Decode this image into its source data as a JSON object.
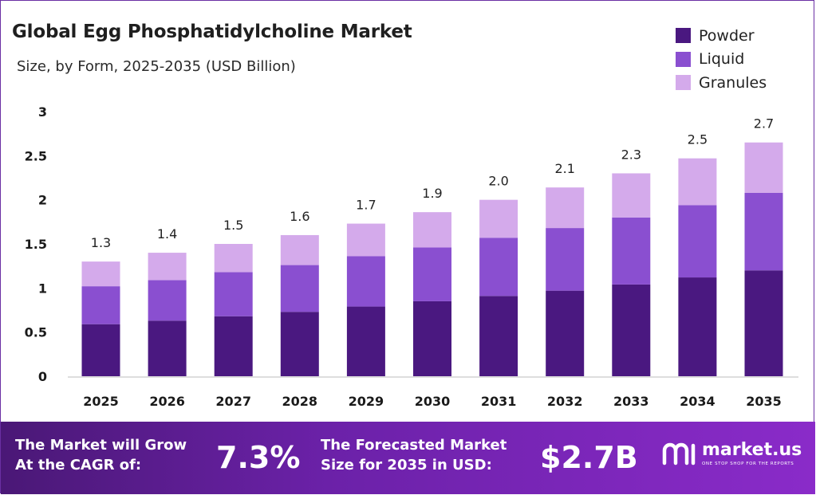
{
  "header": {
    "title": "Global Egg Phosphatidylcholine Market",
    "subtitle": "Size, by Form, 2025-2035 (USD Billion)"
  },
  "chart_data": {
    "type": "bar",
    "stacked": true,
    "categories": [
      "2025",
      "2026",
      "2027",
      "2028",
      "2029",
      "2030",
      "2031",
      "2032",
      "2033",
      "2034",
      "2035"
    ],
    "series": [
      {
        "name": "Powder",
        "color": "#4a1880",
        "values": [
          0.59,
          0.63,
          0.68,
          0.73,
          0.79,
          0.85,
          0.91,
          0.97,
          1.04,
          1.12,
          1.2
        ]
      },
      {
        "name": "Liquid",
        "color": "#8a4fd0",
        "values": [
          0.43,
          0.46,
          0.5,
          0.53,
          0.57,
          0.61,
          0.66,
          0.71,
          0.76,
          0.82,
          0.88
        ]
      },
      {
        "name": "Granules",
        "color": "#d4aaeb",
        "values": [
          0.28,
          0.31,
          0.32,
          0.34,
          0.37,
          0.4,
          0.43,
          0.46,
          0.5,
          0.53,
          0.57
        ]
      }
    ],
    "totals_labels": [
      "1.3",
      "1.4",
      "1.5",
      "1.6",
      "1.7",
      "1.9",
      "2.0",
      "2.1",
      "2.3",
      "2.5",
      "2.7"
    ],
    "ylim": [
      0,
      3
    ],
    "yticks": [
      "0",
      "0.5",
      "1",
      "1.5",
      "2",
      "2.5",
      "3"
    ],
    "ytick_values": [
      0,
      0.5,
      1,
      1.5,
      2,
      2.5,
      3
    ],
    "legend_position": "top-right",
    "grid": false
  },
  "footer": {
    "cagr_label_line1": "The Market will Grow",
    "cagr_label_line2": "At the CAGR of:",
    "cagr_value": "7.3%",
    "forecast_label_line1": "The Forecasted Market",
    "forecast_label_line2": "Size for 2035 in USD:",
    "forecast_value": "$2.7B",
    "brand_name": "market.us",
    "brand_tagline": "ONE STOP SHOP FOR THE REPORTS"
  }
}
